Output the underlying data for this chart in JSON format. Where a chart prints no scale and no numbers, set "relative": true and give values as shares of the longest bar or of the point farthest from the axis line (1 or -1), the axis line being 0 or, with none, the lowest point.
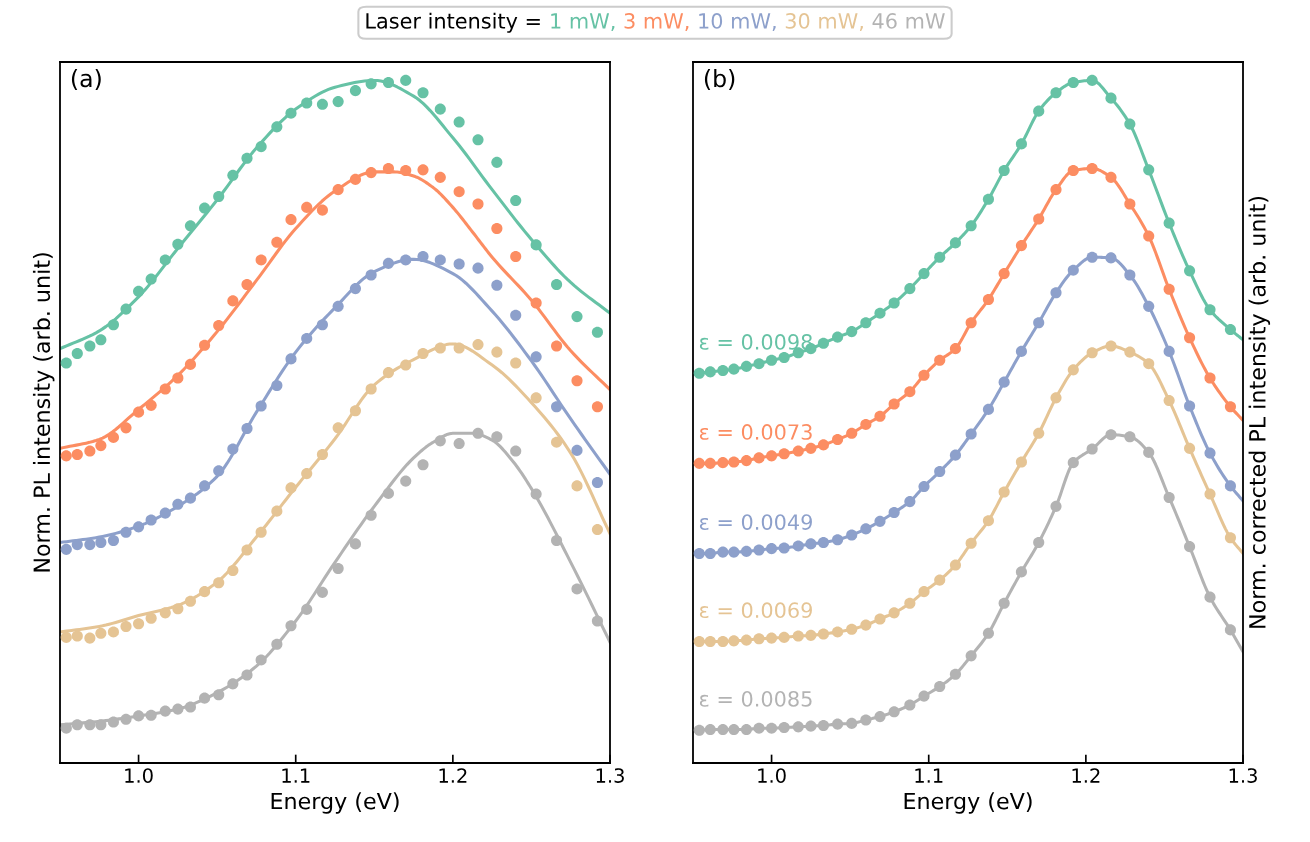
{
  "chart_data": [
    {
      "type": "scatter",
      "title": "(a)",
      "xlabel": "Energy (eV)",
      "ylabel": "Norm. PL intensity (arb. unit)",
      "legend_title": "Laser intensity =",
      "legend": "top",
      "relative": true,
      "marker": "circle",
      "xlim": [
        0.95,
        1.3
      ],
      "xticks": [
        {
          "value": 1.0,
          "label": "1.0"
        },
        1.1,
        1.2,
        1.3
      ],
      "x": [
        0.954,
        0.961,
        0.969,
        0.976,
        0.984,
        0.992,
        1.0,
        1.008,
        1.017,
        1.025,
        1.033,
        1.042,
        1.051,
        1.06,
        1.069,
        1.078,
        1.088,
        1.097,
        1.107,
        1.117,
        1.127,
        1.138,
        1.148,
        1.159,
        1.17,
        1.181,
        1.192,
        1.204,
        1.216,
        1.228,
        1.24,
        1.253,
        1.266,
        1.279,
        1.292
      ],
      "series": [
        {
          "name": "1 mW,",
          "color": "#66c2a5",
          "values": [
            0.586,
            0.6,
            0.611,
            0.62,
            0.642,
            0.665,
            0.691,
            0.709,
            0.737,
            0.76,
            0.787,
            0.813,
            0.83,
            0.861,
            0.886,
            0.903,
            0.932,
            0.952,
            0.967,
            0.965,
            0.969,
            0.985,
            0.995,
            0.997,
            1.0,
            0.982,
            0.958,
            0.939,
            0.913,
            0.88,
            0.824,
            0.759,
            0.701,
            0.654,
            0.631
          ]
        },
        {
          "name": "3 mW,",
          "color": "#fc8d62",
          "values": [
            0.45,
            0.452,
            0.457,
            0.465,
            0.477,
            0.491,
            0.514,
            0.524,
            0.548,
            0.564,
            0.584,
            0.612,
            0.641,
            0.677,
            0.701,
            0.737,
            0.763,
            0.796,
            0.814,
            0.81,
            0.84,
            0.855,
            0.865,
            0.871,
            0.868,
            0.869,
            0.858,
            0.837,
            0.819,
            0.783,
            0.742,
            0.674,
            0.611,
            0.56,
            0.522
          ]
        },
        {
          "name": "10 mW,",
          "color": "#8da0cb",
          "values": [
            0.313,
            0.32,
            0.32,
            0.323,
            0.326,
            0.338,
            0.346,
            0.356,
            0.366,
            0.379,
            0.388,
            0.406,
            0.428,
            0.46,
            0.49,
            0.523,
            0.553,
            0.592,
            0.622,
            0.642,
            0.669,
            0.695,
            0.715,
            0.732,
            0.737,
            0.742,
            0.737,
            0.731,
            0.725,
            0.7,
            0.656,
            0.595,
            0.522,
            0.458,
            0.411
          ]
        },
        {
          "name": "30 mW,",
          "color": "#e5c494",
          "values": [
            0.184,
            0.186,
            0.183,
            0.19,
            0.192,
            0.2,
            0.204,
            0.212,
            0.22,
            0.226,
            0.237,
            0.251,
            0.264,
            0.282,
            0.312,
            0.338,
            0.369,
            0.403,
            0.424,
            0.452,
            0.491,
            0.516,
            0.548,
            0.572,
            0.583,
            0.6,
            0.608,
            0.608,
            0.613,
            0.602,
            0.586,
            0.535,
            0.47,
            0.406,
            0.342
          ]
        },
        {
          "name": "46 mW",
          "color": "#b3b3b3",
          "values": [
            0.051,
            0.056,
            0.056,
            0.056,
            0.06,
            0.064,
            0.069,
            0.07,
            0.076,
            0.079,
            0.082,
            0.095,
            0.1,
            0.116,
            0.129,
            0.151,
            0.174,
            0.201,
            0.225,
            0.25,
            0.285,
            0.321,
            0.363,
            0.395,
            0.413,
            0.437,
            0.472,
            0.468,
            0.483,
            0.478,
            0.457,
            0.394,
            0.326,
            0.255,
            0.208
          ]
        },
        {
          "type": "line",
          "marker": "none",
          "color": "#66c2a5",
          "x": [
            0.95,
            0.975,
            1.0,
            1.025,
            1.05,
            1.075,
            1.1,
            1.125,
            1.15,
            1.175,
            1.2,
            1.225,
            1.25,
            1.275,
            1.3
          ],
          "values": [
            0.607,
            0.633,
            0.683,
            0.754,
            0.825,
            0.901,
            0.958,
            0.99,
            1.0,
            0.977,
            0.916,
            0.84,
            0.767,
            0.704,
            0.659
          ]
        },
        {
          "type": "line",
          "marker": "none",
          "color": "#fc8d62",
          "x": [
            0.95,
            0.975,
            1.0,
            1.025,
            1.05,
            1.075,
            1.1,
            1.125,
            1.15,
            1.1625,
            1.175,
            1.1875,
            1.2,
            1.2125,
            1.225,
            1.25,
            1.275,
            1.3
          ],
          "values": [
            0.461,
            0.474,
            0.518,
            0.568,
            0.632,
            0.707,
            0.783,
            0.838,
            0.866,
            0.866,
            0.86,
            0.843,
            0.814,
            0.778,
            0.741,
            0.678,
            0.604,
            0.547
          ]
        },
        {
          "type": "line",
          "marker": "none",
          "color": "#8da0cb",
          "x": [
            0.95,
            0.975,
            1.0,
            1.025,
            1.05,
            1.075,
            1.1,
            1.125,
            1.15,
            1.175,
            1.2,
            1.225,
            1.25,
            1.275,
            1.3
          ],
          "values": [
            0.323,
            0.331,
            0.347,
            0.376,
            0.42,
            0.514,
            0.602,
            0.667,
            0.72,
            0.738,
            0.717,
            0.662,
            0.589,
            0.504,
            0.423
          ]
        },
        {
          "type": "line",
          "marker": "none",
          "color": "#e5c494",
          "x": [
            0.95,
            0.975,
            1.0,
            1.025,
            1.05,
            1.075,
            1.1,
            1.125,
            1.15,
            1.175,
            1.2,
            1.225,
            1.25,
            1.275,
            1.3
          ],
          "values": [
            0.192,
            0.2,
            0.216,
            0.231,
            0.265,
            0.331,
            0.404,
            0.475,
            0.554,
            0.591,
            0.614,
            0.583,
            0.528,
            0.454,
            0.336
          ]
        },
        {
          "type": "line",
          "marker": "none",
          "color": "#b3b3b3",
          "x": [
            0.95,
            0.975,
            1.0,
            1.025,
            1.05,
            1.075,
            1.1,
            1.125,
            1.15,
            1.175,
            1.1875,
            1.2,
            1.2125,
            1.225,
            1.2375,
            1.25,
            1.275,
            1.3
          ],
          "values": [
            0.056,
            0.061,
            0.069,
            0.079,
            0.103,
            0.142,
            0.208,
            0.294,
            0.376,
            0.447,
            0.47,
            0.483,
            0.483,
            0.473,
            0.444,
            0.402,
            0.294,
            0.177
          ]
        }
      ]
    },
    {
      "type": "scatter",
      "title": "(b)",
      "xlabel": "Energy (eV)",
      "ylabel": "Norm. corrected PL intensity (arb. unit)",
      "relative": true,
      "marker": "circle",
      "xlim": [
        0.95,
        1.3
      ],
      "xticks": [
        {
          "value": 1.0,
          "label": "1.0"
        },
        1.1,
        1.2,
        1.3
      ],
      "annotations": [
        "ε = 0.0098",
        "ε = 0.0073",
        "ε = 0.0049",
        "ε = 0.0069",
        "ε = 0.0085"
      ],
      "x": [
        0.954,
        0.961,
        0.969,
        0.976,
        0.984,
        0.992,
        1.0,
        1.008,
        1.017,
        1.025,
        1.033,
        1.042,
        1.051,
        1.06,
        1.069,
        1.078,
        1.088,
        1.097,
        1.107,
        1.117,
        1.127,
        1.138,
        1.148,
        1.159,
        1.17,
        1.181,
        1.192,
        1.204,
        1.216,
        1.228,
        1.24,
        1.253,
        1.266,
        1.279,
        1.292
      ],
      "series": [
        {
          "color": "#66c2a5",
          "values": [
            0.571,
            0.573,
            0.575,
            0.577,
            0.581,
            0.585,
            0.59,
            0.594,
            0.601,
            0.607,
            0.615,
            0.624,
            0.632,
            0.645,
            0.659,
            0.674,
            0.695,
            0.717,
            0.741,
            0.762,
            0.787,
            0.826,
            0.868,
            0.907,
            0.955,
            0.982,
            0.997,
            1.0,
            0.974,
            0.936,
            0.869,
            0.791,
            0.721,
            0.664,
            0.635
          ]
        },
        {
          "color": "#fc8d62",
          "values": [
            0.439,
            0.439,
            0.44,
            0.441,
            0.443,
            0.447,
            0.45,
            0.453,
            0.457,
            0.461,
            0.466,
            0.474,
            0.483,
            0.496,
            0.508,
            0.526,
            0.544,
            0.568,
            0.59,
            0.607,
            0.645,
            0.679,
            0.717,
            0.758,
            0.797,
            0.84,
            0.868,
            0.871,
            0.858,
            0.819,
            0.772,
            0.694,
            0.623,
            0.564,
            0.522
          ]
        },
        {
          "color": "#8da0cb",
          "values": [
            0.307,
            0.307,
            0.309,
            0.309,
            0.31,
            0.312,
            0.314,
            0.315,
            0.318,
            0.321,
            0.323,
            0.327,
            0.334,
            0.343,
            0.354,
            0.367,
            0.383,
            0.405,
            0.427,
            0.451,
            0.482,
            0.518,
            0.558,
            0.603,
            0.645,
            0.689,
            0.722,
            0.741,
            0.74,
            0.715,
            0.669,
            0.603,
            0.523,
            0.454,
            0.406
          ]
        },
        {
          "color": "#e5c494",
          "values": [
            0.178,
            0.178,
            0.178,
            0.179,
            0.18,
            0.182,
            0.183,
            0.184,
            0.186,
            0.187,
            0.189,
            0.192,
            0.196,
            0.202,
            0.211,
            0.22,
            0.234,
            0.251,
            0.268,
            0.29,
            0.322,
            0.355,
            0.397,
            0.441,
            0.483,
            0.535,
            0.576,
            0.601,
            0.611,
            0.602,
            0.585,
            0.531,
            0.461,
            0.394,
            0.33
          ]
        },
        {
          "color": "#b3b3b3",
          "values": [
            0.048,
            0.049,
            0.049,
            0.049,
            0.049,
            0.051,
            0.051,
            0.052,
            0.053,
            0.054,
            0.055,
            0.057,
            0.058,
            0.063,
            0.068,
            0.075,
            0.085,
            0.098,
            0.112,
            0.13,
            0.157,
            0.19,
            0.234,
            0.28,
            0.323,
            0.376,
            0.44,
            0.46,
            0.481,
            0.478,
            0.455,
            0.389,
            0.317,
            0.243,
            0.195
          ]
        },
        {
          "type": "line",
          "marker": "none",
          "color": "#66c2a5",
          "x": [
            0.95,
            0.954,
            0.961,
            0.969,
            0.976,
            0.984,
            0.992,
            1.0,
            1.008,
            1.017,
            1.025,
            1.033,
            1.042,
            1.051,
            1.06,
            1.069,
            1.078,
            1.088,
            1.097,
            1.107,
            1.117,
            1.127,
            1.138,
            1.148,
            1.159,
            1.17,
            1.181,
            1.192,
            1.204,
            1.216,
            1.228,
            1.24,
            1.253,
            1.266,
            1.279,
            1.292,
            1.3
          ],
          "values": [
            0.57,
            0.571,
            0.573,
            0.575,
            0.577,
            0.581,
            0.585,
            0.59,
            0.594,
            0.601,
            0.607,
            0.615,
            0.624,
            0.632,
            0.645,
            0.659,
            0.674,
            0.695,
            0.717,
            0.741,
            0.762,
            0.787,
            0.826,
            0.868,
            0.907,
            0.955,
            0.982,
            0.997,
            1.0,
            0.974,
            0.936,
            0.869,
            0.791,
            0.721,
            0.664,
            0.635,
            0.62
          ]
        },
        {
          "type": "line",
          "marker": "none",
          "color": "#fc8d62",
          "x": [
            0.95,
            0.954,
            0.961,
            0.969,
            0.976,
            0.984,
            0.992,
            1.0,
            1.008,
            1.017,
            1.025,
            1.033,
            1.042,
            1.051,
            1.06,
            1.069,
            1.078,
            1.088,
            1.097,
            1.107,
            1.117,
            1.127,
            1.138,
            1.148,
            1.159,
            1.17,
            1.181,
            1.192,
            1.204,
            1.216,
            1.228,
            1.24,
            1.253,
            1.266,
            1.279,
            1.292,
            1.3
          ],
          "values": [
            0.438,
            0.439,
            0.439,
            0.44,
            0.441,
            0.443,
            0.447,
            0.45,
            0.453,
            0.457,
            0.461,
            0.466,
            0.474,
            0.483,
            0.496,
            0.508,
            0.526,
            0.544,
            0.568,
            0.59,
            0.607,
            0.645,
            0.679,
            0.717,
            0.758,
            0.797,
            0.84,
            0.868,
            0.871,
            0.858,
            0.819,
            0.772,
            0.694,
            0.623,
            0.564,
            0.522,
            0.502
          ]
        },
        {
          "type": "line",
          "marker": "none",
          "color": "#8da0cb",
          "x": [
            0.95,
            0.954,
            0.961,
            0.969,
            0.976,
            0.984,
            0.992,
            1.0,
            1.008,
            1.017,
            1.025,
            1.033,
            1.042,
            1.051,
            1.06,
            1.069,
            1.078,
            1.088,
            1.097,
            1.107,
            1.117,
            1.127,
            1.138,
            1.148,
            1.159,
            1.17,
            1.181,
            1.192,
            1.204,
            1.216,
            1.228,
            1.24,
            1.253,
            1.266,
            1.279,
            1.292,
            1.3
          ],
          "values": [
            0.306,
            0.307,
            0.307,
            0.309,
            0.309,
            0.31,
            0.312,
            0.314,
            0.315,
            0.318,
            0.321,
            0.323,
            0.327,
            0.334,
            0.343,
            0.354,
            0.367,
            0.383,
            0.405,
            0.427,
            0.451,
            0.482,
            0.518,
            0.558,
            0.603,
            0.645,
            0.689,
            0.722,
            0.741,
            0.74,
            0.715,
            0.669,
            0.603,
            0.523,
            0.454,
            0.406,
            0.384
          ]
        },
        {
          "type": "line",
          "marker": "none",
          "color": "#e5c494",
          "x": [
            0.95,
            0.954,
            0.961,
            0.969,
            0.976,
            0.984,
            0.992,
            1.0,
            1.008,
            1.017,
            1.025,
            1.033,
            1.042,
            1.051,
            1.06,
            1.069,
            1.078,
            1.088,
            1.097,
            1.107,
            1.117,
            1.127,
            1.138,
            1.148,
            1.159,
            1.17,
            1.181,
            1.192,
            1.204,
            1.216,
            1.228,
            1.24,
            1.253,
            1.266,
            1.279,
            1.292,
            1.3
          ],
          "values": [
            0.177,
            0.178,
            0.178,
            0.178,
            0.179,
            0.18,
            0.182,
            0.183,
            0.184,
            0.186,
            0.187,
            0.189,
            0.192,
            0.196,
            0.202,
            0.211,
            0.22,
            0.234,
            0.251,
            0.268,
            0.29,
            0.322,
            0.355,
            0.397,
            0.441,
            0.483,
            0.535,
            0.576,
            0.601,
            0.611,
            0.602,
            0.585,
            0.531,
            0.461,
            0.394,
            0.33,
            0.307
          ]
        },
        {
          "type": "line",
          "marker": "none",
          "color": "#b3b3b3",
          "x": [
            0.95,
            0.954,
            0.961,
            0.969,
            0.976,
            0.984,
            0.992,
            1.0,
            1.008,
            1.017,
            1.025,
            1.033,
            1.042,
            1.051,
            1.06,
            1.069,
            1.078,
            1.088,
            1.097,
            1.107,
            1.117,
            1.127,
            1.138,
            1.148,
            1.159,
            1.17,
            1.181,
            1.192,
            1.204,
            1.216,
            1.228,
            1.24,
            1.253,
            1.266,
            1.279,
            1.292,
            1.3
          ],
          "values": [
            0.047,
            0.048,
            0.049,
            0.049,
            0.049,
            0.049,
            0.051,
            0.051,
            0.052,
            0.053,
            0.054,
            0.055,
            0.057,
            0.058,
            0.063,
            0.068,
            0.075,
            0.085,
            0.098,
            0.112,
            0.13,
            0.157,
            0.19,
            0.234,
            0.28,
            0.323,
            0.376,
            0.44,
            0.46,
            0.481,
            0.478,
            0.455,
            0.389,
            0.317,
            0.243,
            0.195,
            0.163
          ]
        }
      ]
    }
  ]
}
